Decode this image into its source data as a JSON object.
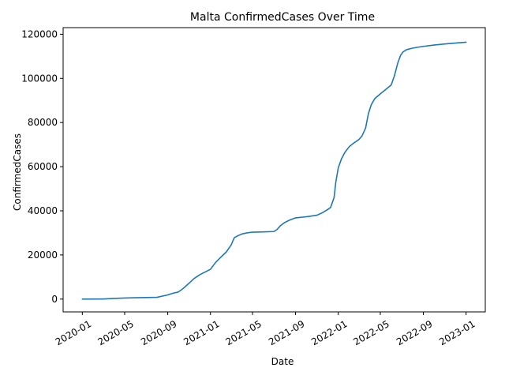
{
  "chart_data": {
    "type": "line",
    "title": "Malta  ConfirmedCases Over Time",
    "xlabel": "Date",
    "ylabel": "ConfirmedCases",
    "x_tick_labels": [
      "2020-01",
      "2020-05",
      "2020-09",
      "2021-01",
      "2021-05",
      "2021-09",
      "2022-01",
      "2022-05",
      "2022-09",
      "2023-01"
    ],
    "y_tick_labels": [
      "0",
      "20000",
      "40000",
      "60000",
      "80000",
      "100000",
      "120000"
    ],
    "ylim": [
      -5800,
      123000
    ],
    "grid": false,
    "legend": "none",
    "line_color": "#1f77b4",
    "series": [
      {
        "x": [
          "2020-01-01",
          "2020-03-01",
          "2020-04-01",
          "2020-05-01",
          "2020-06-01",
          "2020-07-01",
          "2020-08-01",
          "2020-09-01",
          "2020-09-15",
          "2020-10-01",
          "2020-10-15",
          "2020-11-01",
          "2020-11-15",
          "2020-12-01",
          "2021-01-01",
          "2021-01-15",
          "2021-02-01",
          "2021-02-15",
          "2021-03-01",
          "2021-03-10",
          "2021-03-20",
          "2021-04-01",
          "2021-04-15",
          "2021-05-01",
          "2021-06-01",
          "2021-07-01",
          "2021-07-10",
          "2021-07-20",
          "2021-08-01",
          "2021-08-15",
          "2021-09-01",
          "2021-10-01",
          "2021-10-15",
          "2021-11-01",
          "2021-11-15",
          "2021-12-01",
          "2021-12-10",
          "2021-12-20",
          "2021-12-25",
          "2022-01-01",
          "2022-01-10",
          "2022-01-20",
          "2022-02-01",
          "2022-02-15",
          "2022-03-01",
          "2022-03-10",
          "2022-03-20",
          "2022-03-28",
          "2022-04-05",
          "2022-04-15",
          "2022-05-01",
          "2022-05-15",
          "2022-06-01",
          "2022-06-10",
          "2022-06-20",
          "2022-06-28",
          "2022-07-05",
          "2022-07-15",
          "2022-08-01",
          "2022-08-15",
          "2022-09-01",
          "2022-10-01",
          "2022-11-01",
          "2022-12-01",
          "2023-01-01"
        ],
        "y": [
          0,
          50,
          300,
          500,
          600,
          700,
          800,
          1900,
          2600,
          3200,
          4800,
          7200,
          9300,
          11000,
          13500,
          16500,
          19200,
          21300,
          24500,
          27800,
          28700,
          29500,
          30000,
          30300,
          30450,
          30600,
          31500,
          33300,
          34700,
          35800,
          36800,
          37300,
          37600,
          38000,
          39000,
          40500,
          41500,
          46000,
          53000,
          59500,
          63500,
          66500,
          69000,
          70800,
          72300,
          74000,
          77500,
          84000,
          88000,
          90800,
          93000,
          94800,
          97000,
          101000,
          107000,
          110500,
          112000,
          113000,
          113700,
          114100,
          114500,
          115100,
          115600,
          116000,
          116400
        ]
      }
    ]
  }
}
